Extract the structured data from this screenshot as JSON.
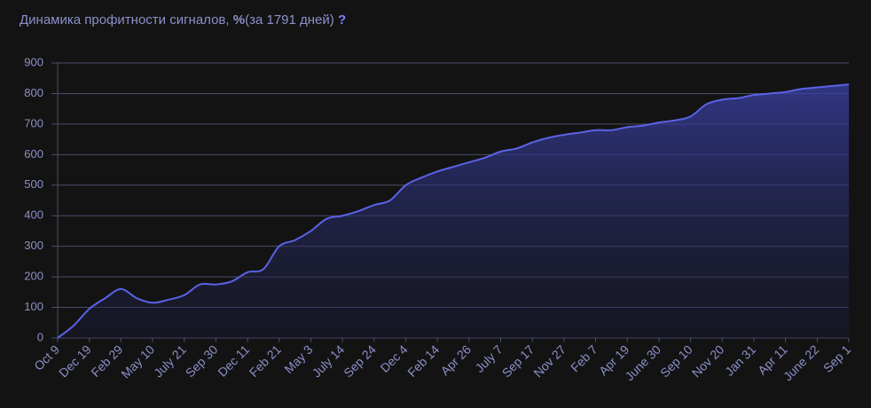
{
  "chart_data": {
    "type": "area",
    "title": "Динамика профитности сигналов,",
    "title_unit": "%",
    "title_period": "(за 1791 дней)",
    "help": "?",
    "categories": [
      "Oct 9",
      null,
      "Dec 19",
      null,
      "Feb 29",
      null,
      "May 10",
      null,
      "July 21",
      null,
      "Sep 30",
      null,
      "Dec 11",
      null,
      "Feb 21",
      null,
      "May 3",
      null,
      "July 14",
      null,
      "Sep 24",
      null,
      "Dec 4",
      null,
      "Feb 14",
      null,
      "Apr 26",
      null,
      "July 7",
      null,
      "Sep 17",
      null,
      "Nov 27",
      null,
      "Feb 7",
      null,
      "Apr 19",
      null,
      "June 30",
      null,
      "Sep 10",
      null,
      "Nov 20",
      null,
      "Jan 31",
      null,
      "Apr 11",
      null,
      "June 22",
      null,
      "Sep 1"
    ],
    "series": [
      {
        "color": "#5a62e6",
        "values": [
          0,
          40,
          95,
          130,
          160,
          130,
          115,
          125,
          140,
          175,
          175,
          185,
          215,
          225,
          300,
          320,
          350,
          390,
          400,
          415,
          435,
          450,
          500,
          525,
          545,
          560,
          575,
          590,
          610,
          620,
          640,
          655,
          665,
          672,
          680,
          680,
          690,
          695,
          705,
          712,
          725,
          765,
          780,
          785,
          795,
          800,
          805,
          815,
          820,
          825,
          830
        ]
      }
    ],
    "ylim": [
      0,
      900
    ],
    "yticks": [
      0,
      100,
      200,
      300,
      400,
      500,
      600,
      700,
      800,
      900
    ],
    "grid": true
  }
}
